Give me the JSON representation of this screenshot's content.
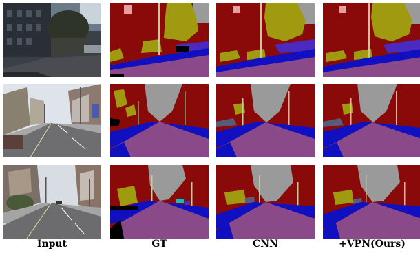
{
  "columns": [
    {
      "label": "Input"
    },
    {
      "label": "GT"
    },
    {
      "label": "CNN"
    },
    {
      "label": "+VPN(Ours)"
    }
  ],
  "rows": [
    {
      "scene": "street-with-tall-buildings-and-trees"
    },
    {
      "scene": "residential-street-with-houses"
    },
    {
      "scene": "residential-street-with-lamp-posts"
    }
  ],
  "palette": {
    "road": "#8a4a8a",
    "building": "#8a0a0a",
    "sky": "#9a9a9a",
    "vegetation": "#a09a10",
    "sidewalk": "#1010c0",
    "pole": "#c8c8a0",
    "car": "#4a2ac0",
    "void": "#000000"
  }
}
